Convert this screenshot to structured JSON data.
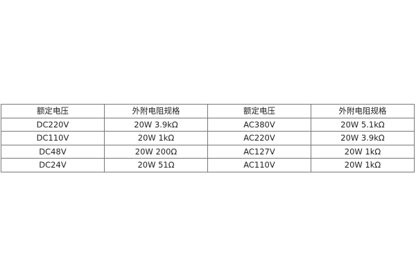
{
  "table": {
    "headers": [
      "额定电压",
      "外附电阻规格",
      "额定电压",
      "外附电阻规格"
    ],
    "rows": [
      [
        "DC220V",
        "20W 3.9kΩ",
        "AC380V",
        "20W 5.1kΩ"
      ],
      [
        "DC110V",
        "20W 1kΩ",
        "AC220V",
        "20W 3.9kΩ"
      ],
      [
        "DC48V",
        "20W 200Ω",
        "AC127V",
        "20W 1kΩ"
      ],
      [
        "DC24V",
        "20W 51Ω",
        "AC110V",
        "20W 1kΩ"
      ]
    ]
  }
}
